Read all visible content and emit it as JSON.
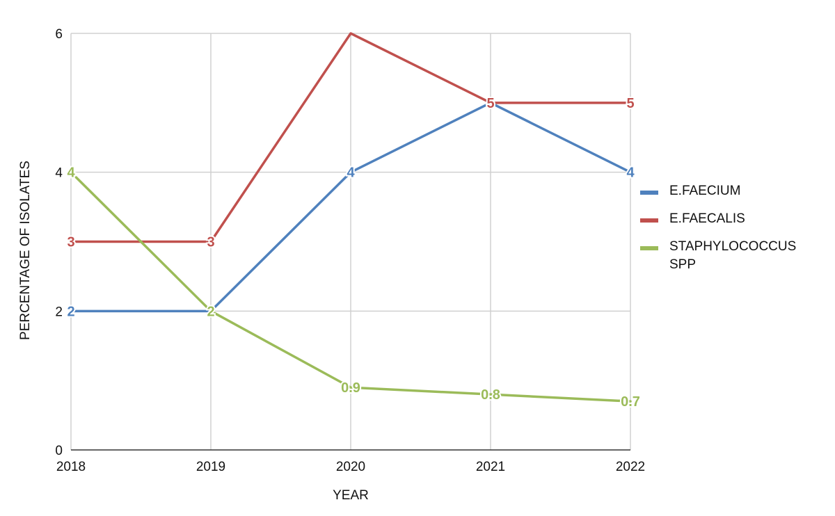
{
  "chart_data": {
    "type": "line",
    "xlabel": "YEAR",
    "ylabel": "PERCENTAGE OF ISOLATES",
    "categories": [
      "2018",
      "2019",
      "2020",
      "2021",
      "2022"
    ],
    "ylim": [
      0,
      6
    ],
    "yticks": [
      0,
      2,
      4,
      6
    ],
    "grid": true,
    "legend_position": "right",
    "series": [
      {
        "name": "E.FAECIUM",
        "color": "#4f81bd",
        "values": [
          2,
          2,
          4,
          5,
          4
        ],
        "labels": [
          "2",
          "",
          "4",
          "",
          "4"
        ]
      },
      {
        "name": "E.FAECALIS",
        "color": "#c0504d",
        "values": [
          3,
          3,
          6,
          5,
          5
        ],
        "labels": [
          "3",
          "3",
          "",
          "5",
          "5"
        ]
      },
      {
        "name": "STAPHYLOCOCCUS SPP",
        "color": "#9bbb59",
        "values": [
          4,
          2,
          0.9,
          0.8,
          0.7
        ],
        "labels": [
          "4",
          "2",
          "0.9",
          "0.8",
          "0.7"
        ]
      }
    ]
  }
}
